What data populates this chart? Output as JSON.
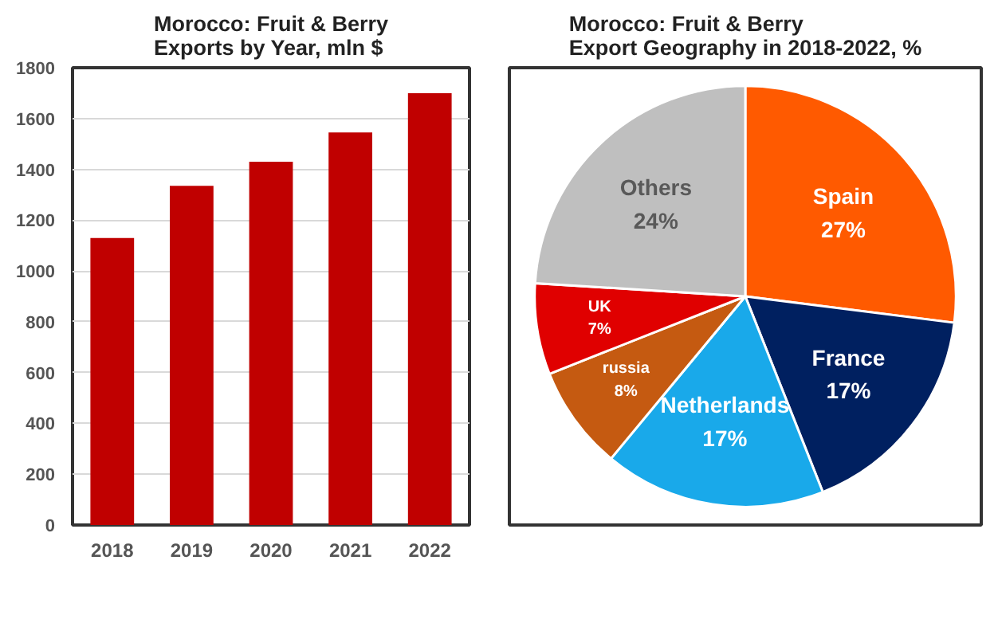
{
  "chart_data": [
    {
      "type": "bar",
      "title": "Morocco: Fruit & Berry\nExports by Year, mln $",
      "categories": [
        "2018",
        "2019",
        "2020",
        "2021",
        "2022"
      ],
      "values": [
        1130,
        1335,
        1430,
        1545,
        1700
      ],
      "color": "#c00000",
      "ylim": [
        0,
        1800
      ],
      "yticks": [
        0,
        200,
        400,
        600,
        800,
        1000,
        1200,
        1400,
        1600,
        1800
      ],
      "grid": "y"
    },
    {
      "type": "pie",
      "title": "Morocco: Fruit & Berry\nExport Geography in 2018-2022, %",
      "categories": [
        "Spain",
        "France",
        "Netherlands",
        "russia",
        "UK",
        "Others"
      ],
      "values": [
        27,
        17,
        17,
        8,
        7,
        24
      ],
      "value_labels": [
        "27%",
        "17%",
        "17%",
        "8%",
        "7%",
        "24%"
      ],
      "colors": [
        "#ff5a00",
        "#002060",
        "#19a9ea",
        "#c55a11",
        "#e00000",
        "#bfbfbf"
      ]
    }
  ]
}
